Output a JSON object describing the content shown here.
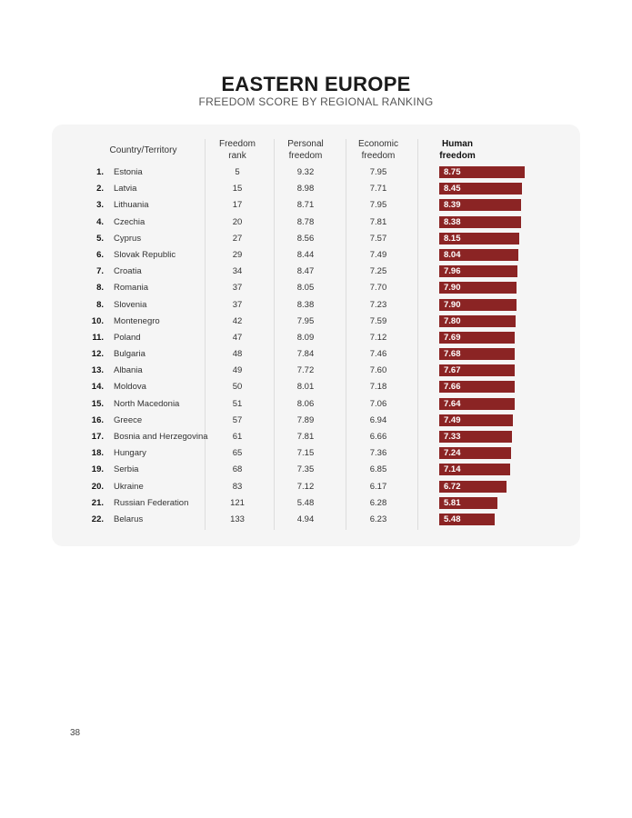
{
  "title": "EASTERN EUROPE",
  "subtitle": "FREEDOM SCORE BY REGIONAL RANKING",
  "headers": {
    "country": "Country/Territory",
    "freedom_rank": [
      "Freedom",
      "rank"
    ],
    "personal": [
      "Personal",
      "freedom"
    ],
    "economic": [
      "Economic",
      "freedom"
    ],
    "human": [
      "Human",
      "freedom"
    ]
  },
  "bar_color": "#8b2424",
  "rows": [
    {
      "rank": "1.",
      "country": "Estonia",
      "freedom_rank": "5",
      "personal": "9.32",
      "economic": "7.95",
      "human": "8.75"
    },
    {
      "rank": "2.",
      "country": "Latvia",
      "freedom_rank": "15",
      "personal": "8.98",
      "economic": "7.71",
      "human": "8.45"
    },
    {
      "rank": "3.",
      "country": "Lithuania",
      "freedom_rank": "17",
      "personal": "8.71",
      "economic": "7.95",
      "human": "8.39"
    },
    {
      "rank": "4.",
      "country": "Czechia",
      "freedom_rank": "20",
      "personal": "8.78",
      "economic": "7.81",
      "human": "8.38"
    },
    {
      "rank": "5.",
      "country": "Cyprus",
      "freedom_rank": "27",
      "personal": "8.56",
      "economic": "7.57",
      "human": "8.15"
    },
    {
      "rank": "6.",
      "country": "Slovak Republic",
      "freedom_rank": "29",
      "personal": "8.44",
      "economic": "7.49",
      "human": "8.04"
    },
    {
      "rank": "7.",
      "country": "Croatia",
      "freedom_rank": "34",
      "personal": "8.47",
      "economic": "7.25",
      "human": "7.96"
    },
    {
      "rank": "8.",
      "country": "Romania",
      "freedom_rank": "37",
      "personal": "8.05",
      "economic": "7.70",
      "human": "7.90"
    },
    {
      "rank": "8.",
      "country": "Slovenia",
      "freedom_rank": "37",
      "personal": "8.38",
      "economic": "7.23",
      "human": "7.90"
    },
    {
      "rank": "10.",
      "country": "Montenegro",
      "freedom_rank": "42",
      "personal": "7.95",
      "economic": "7.59",
      "human": "7.80"
    },
    {
      "rank": "11.",
      "country": "Poland",
      "freedom_rank": "47",
      "personal": "8.09",
      "economic": "7.12",
      "human": "7.69"
    },
    {
      "rank": "12.",
      "country": "Bulgaria",
      "freedom_rank": "48",
      "personal": "7.84",
      "economic": "7.46",
      "human": "7.68"
    },
    {
      "rank": "13.",
      "country": "Albania",
      "freedom_rank": "49",
      "personal": "7.72",
      "economic": "7.60",
      "human": "7.67"
    },
    {
      "rank": "14.",
      "country": "Moldova",
      "freedom_rank": "50",
      "personal": "8.01",
      "economic": "7.18",
      "human": "7.66"
    },
    {
      "rank": "15.",
      "country": "North Macedonia",
      "freedom_rank": "51",
      "personal": "8.06",
      "economic": "7.06",
      "human": "7.64"
    },
    {
      "rank": "16.",
      "country": "Greece",
      "freedom_rank": "57",
      "personal": "7.89",
      "economic": "6.94",
      "human": "7.49"
    },
    {
      "rank": "17.",
      "country": "Bosnia and Herzegovina",
      "freedom_rank": "61",
      "personal": "7.81",
      "economic": "6.66",
      "human": "7.33"
    },
    {
      "rank": "18.",
      "country": "Hungary",
      "freedom_rank": "65",
      "personal": "7.15",
      "economic": "7.36",
      "human": "7.24"
    },
    {
      "rank": "19.",
      "country": "Serbia",
      "freedom_rank": "68",
      "personal": "7.35",
      "economic": "6.85",
      "human": "7.14"
    },
    {
      "rank": "20.",
      "country": "Ukraine",
      "freedom_rank": "83",
      "personal": "7.12",
      "economic": "6.17",
      "human": "6.72"
    },
    {
      "rank": "21.",
      "country": "Russian Federation",
      "freedom_rank": "121",
      "personal": "5.48",
      "economic": "6.28",
      "human": "5.81"
    },
    {
      "rank": "22.",
      "country": "Belarus",
      "freedom_rank": "133",
      "personal": "4.94",
      "economic": "6.23",
      "human": "5.48"
    }
  ],
  "page_number": "38"
}
